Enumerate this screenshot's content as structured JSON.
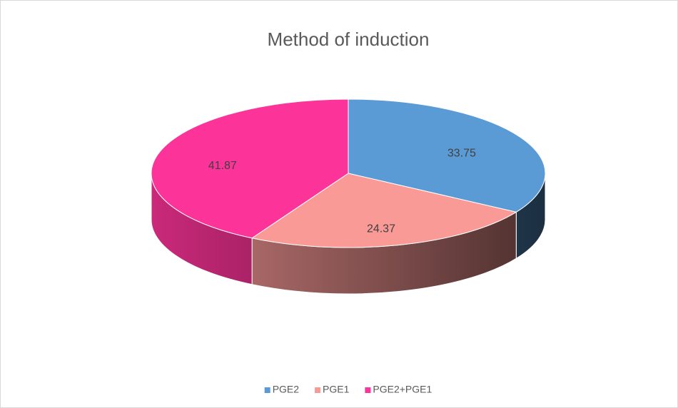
{
  "chart_data": {
    "type": "pie",
    "title": "Method of induction",
    "categories": [
      "PGE2",
      "PGE1",
      "PGE2+PGE1"
    ],
    "values": [
      33.75,
      24.37,
      41.87
    ],
    "colors": [
      "#5b9bd5",
      "#f99a97",
      "#fc3399"
    ],
    "legend": "bottom"
  }
}
